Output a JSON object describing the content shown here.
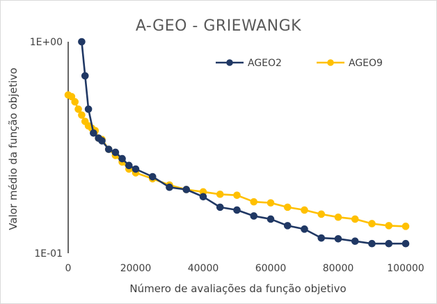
{
  "chart_data": {
    "type": "line",
    "title": "A-GEO - GRIEWANGK",
    "xlabel": "Número de avaliações da função objetivo",
    "ylabel": "Valor médio da função objetivo",
    "yscale": "log",
    "xlim": [
      0,
      100000
    ],
    "ylim": [
      0.1,
      1
    ],
    "x_ticks": [
      "0",
      "20000",
      "40000",
      "60000",
      "80000",
      "100000"
    ],
    "y_ticks": [
      "1E-01",
      "1E+00"
    ],
    "grid": false,
    "legend_position": "top-right",
    "series": [
      {
        "name": "AGEO2",
        "color": "#203864",
        "x": [
          4000,
          5000,
          6000,
          7500,
          9000,
          10000,
          12000,
          14000,
          16000,
          18000,
          20000,
          25000,
          30000,
          35000,
          40000,
          45000,
          50000,
          55000,
          60000,
          65000,
          70000,
          75000,
          80000,
          85000,
          90000,
          95000,
          100000
        ],
        "y": [
          1.0,
          0.69,
          0.48,
          0.37,
          0.35,
          0.34,
          0.31,
          0.3,
          0.28,
          0.26,
          0.25,
          0.23,
          0.205,
          0.2,
          0.185,
          0.165,
          0.16,
          0.15,
          0.145,
          0.135,
          0.13,
          0.118,
          0.117,
          0.114,
          0.111,
          0.111,
          0.111
        ]
      },
      {
        "name": "AGEO9",
        "color": "#FFC000",
        "x": [
          0,
          1000,
          2000,
          3000,
          4000,
          5000,
          6000,
          7000,
          8000,
          9000,
          10000,
          12000,
          14000,
          16000,
          18000,
          20000,
          25000,
          30000,
          35000,
          40000,
          45000,
          50000,
          55000,
          60000,
          65000,
          70000,
          75000,
          80000,
          85000,
          90000,
          95000,
          100000
        ],
        "y": [
          0.56,
          0.55,
          0.52,
          0.48,
          0.45,
          0.42,
          0.4,
          0.39,
          0.38,
          0.35,
          0.345,
          0.31,
          0.29,
          0.27,
          0.25,
          0.24,
          0.225,
          0.21,
          0.2,
          0.195,
          0.19,
          0.188,
          0.175,
          0.173,
          0.165,
          0.16,
          0.153,
          0.148,
          0.145,
          0.138,
          0.135,
          0.134
        ]
      }
    ]
  }
}
